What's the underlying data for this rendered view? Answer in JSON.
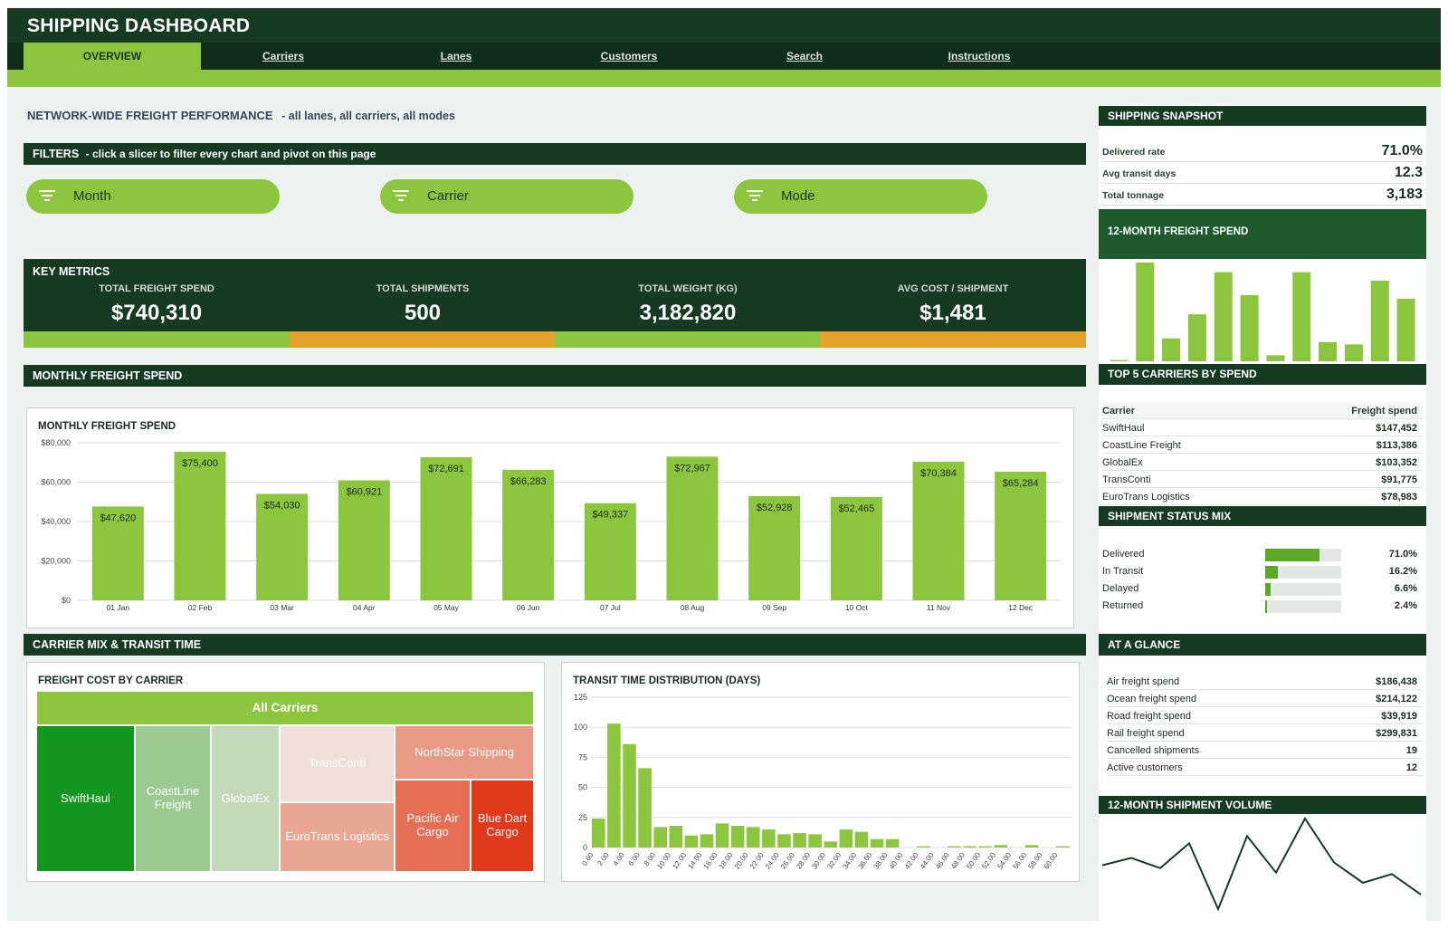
{
  "app": {
    "title": "SHIPPING DASHBOARD",
    "tabs": [
      {
        "label": "OVERVIEW",
        "active": true
      },
      {
        "label": "Carriers"
      },
      {
        "label": "Lanes"
      },
      {
        "label": "Customers"
      },
      {
        "label": "Search"
      },
      {
        "label": "Instructions"
      }
    ]
  },
  "colors": {
    "dark_green": "#163a22",
    "accent_green": "#8cc63f",
    "orange": "#e3a22b",
    "red": "#e0391b"
  },
  "performance": {
    "title": "NETWORK-WIDE FREIGHT PERFORMANCE",
    "subtitle": "-  all lanes, all carriers, all modes"
  },
  "filters": {
    "title": "FILTERS",
    "hint": "-  click a slicer to filter every chart and pivot on this page",
    "slicers": [
      {
        "label": "Month",
        "icon": "filter-icon"
      },
      {
        "label": "Carrier",
        "icon": "filter-icon"
      },
      {
        "label": "Mode",
        "icon": "filter-icon"
      }
    ]
  },
  "key_metrics": {
    "title": "KEY METRICS",
    "items": [
      {
        "label": "TOTAL FREIGHT SPEND",
        "value": "$740,310"
      },
      {
        "label": "TOTAL SHIPMENTS",
        "value": "500"
      },
      {
        "label": "TOTAL WEIGHT (KG)",
        "value": "3,182,820"
      },
      {
        "label": "AVG COST / SHIPMENT",
        "value": "$1,481"
      }
    ]
  },
  "sections": {
    "monthly": "MONTHLY FREIGHT SPEND",
    "carrier_mix": "CARRIER MIX & TRANSIT TIME"
  },
  "chart_data": [
    {
      "type": "bar",
      "title": "MONTHLY FREIGHT SPEND",
      "categories": [
        "01 Jan",
        "02 Feb",
        "03 Mar",
        "04 Apr",
        "05 May",
        "06 Jun",
        "07 Jul",
        "08 Aug",
        "09 Sep",
        "10 Oct",
        "11 Nov",
        "12 Dec"
      ],
      "values": [
        47620,
        75400,
        54030,
        60921,
        72691,
        66283,
        49337,
        72967,
        52928,
        52465,
        70384,
        65284
      ],
      "data_labels": [
        "$47,620",
        "$75,400",
        "$54,030",
        "$60,921",
        "$72,691",
        "$66,283",
        "$49,337",
        "$72,967",
        "$52,928",
        "$52,465",
        "$70,384",
        "$65,284"
      ],
      "yticks": [
        "$0",
        "$20,000",
        "$40,000",
        "$60,000",
        "$80,000"
      ],
      "ylim": [
        0,
        80000
      ],
      "grid": true,
      "color": "#8cc63f"
    },
    {
      "type": "treemap",
      "title": "FREIGHT COST BY CARRIER",
      "root": "All Carriers",
      "items": [
        {
          "name": "SwiftHaul",
          "value": 147452,
          "color": "#13961f"
        },
        {
          "name": "CoastLine Freight",
          "value": 113386,
          "color": "#9ccb91"
        },
        {
          "name": "GlobalEx",
          "value": 103352,
          "color": "#c3d9b9"
        },
        {
          "name": "TransConti",
          "value": 91775,
          "color": "#eee0d9"
        },
        {
          "name": "EuroTrans Logistics",
          "value": 78983,
          "color": "#e8a693"
        },
        {
          "name": "NorthStar Shipping",
          "color": "#e89a85"
        },
        {
          "name": "Pacific Air Cargo",
          "color": "#e56f55"
        },
        {
          "name": "Blue Dart Cargo",
          "color": "#e0391b"
        }
      ]
    },
    {
      "type": "bar",
      "title": "TRANSIT TIME DISTRIBUTION (DAYS)",
      "x": [
        "0.00",
        "2.00",
        "4.00",
        "6.00",
        "8.00",
        "10.00",
        "12.00",
        "14.00",
        "16.00",
        "18.00",
        "20.00",
        "22.00",
        "24.00",
        "26.00",
        "28.00",
        "30.00",
        "32.00",
        "34.00",
        "36.00",
        "38.00",
        "40.00",
        "42.00",
        "44.00",
        "46.00",
        "48.00",
        "50.00",
        "52.00",
        "54.00",
        "56.00",
        "58.00",
        "60.00"
      ],
      "values": [
        24,
        103,
        86,
        66,
        17,
        18,
        10,
        11,
        20,
        18,
        17,
        15,
        11,
        12,
        11,
        5,
        15,
        13,
        7,
        7,
        0,
        1,
        0,
        1,
        1,
        1,
        2,
        0,
        2,
        0,
        1
      ],
      "bin_width": 1,
      "xmin": 0,
      "xmax": 31,
      "yticks": [
        "0",
        "25",
        "50",
        "75",
        "100",
        "125"
      ],
      "ylim": [
        0,
        125
      ],
      "grid": true,
      "color": "#8cc63f"
    },
    {
      "type": "bar",
      "title": "12-MONTH FREIGHT SPEND",
      "values": [
        1,
        82,
        19,
        39,
        74,
        55,
        5,
        74,
        16,
        14,
        67,
        52
      ],
      "color": "#8cc63f"
    },
    {
      "type": "line",
      "title": "12-MONTH SHIPMENT VOLUME",
      "values": [
        40,
        45,
        38,
        55,
        10,
        60,
        35,
        72,
        42,
        28,
        34,
        20
      ],
      "color": "#163a22"
    }
  ],
  "snapshot": {
    "title": "SHIPPING SNAPSHOT",
    "rows": [
      {
        "label": "Delivered rate",
        "value": "71.0%"
      },
      {
        "label": "Avg transit days",
        "value": "12.3"
      },
      {
        "label": "Total tonnage",
        "value": "3,183"
      }
    ],
    "spend_title": "12-MONTH FREIGHT SPEND"
  },
  "top_carriers": {
    "title": "TOP 5 CARRIERS BY SPEND",
    "col_carrier": "Carrier",
    "col_spend": "Freight spend",
    "rows": [
      {
        "carrier": "SwiftHaul",
        "spend": "$147,452"
      },
      {
        "carrier": "CoastLine Freight",
        "spend": "$113,386"
      },
      {
        "carrier": "GlobalEx",
        "spend": "$103,352"
      },
      {
        "carrier": "TransConti",
        "spend": "$91,775"
      },
      {
        "carrier": "EuroTrans Logistics",
        "spend": "$78,983"
      }
    ]
  },
  "status_mix": {
    "title": "SHIPMENT STATUS MIX",
    "rows": [
      {
        "label": "Delivered",
        "pct": "71.0%",
        "fraction": 0.71
      },
      {
        "label": "In Transit",
        "pct": "16.2%",
        "fraction": 0.162
      },
      {
        "label": "Delayed",
        "pct": "6.6%",
        "fraction": 0.066
      },
      {
        "label": "Returned",
        "pct": "2.4%",
        "fraction": 0.024
      }
    ]
  },
  "at_a_glance": {
    "title": "AT A GLANCE",
    "rows": [
      {
        "label": "Air freight spend",
        "value": "$186,438"
      },
      {
        "label": "Ocean freight spend",
        "value": "$214,122"
      },
      {
        "label": "Road freight spend",
        "value": "$39,919"
      },
      {
        "label": "Rail freight spend",
        "value": "$299,831"
      },
      {
        "label": "Cancelled shipments",
        "value": "19"
      },
      {
        "label": "Active customers",
        "value": "12"
      }
    ]
  },
  "volume": {
    "title": "12-MONTH SHIPMENT VOLUME"
  }
}
